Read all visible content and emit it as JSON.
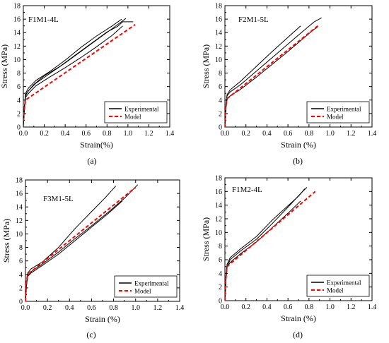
{
  "figure": {
    "panels": [
      "(a)",
      "(b)",
      "(c)",
      "(d)"
    ]
  },
  "chart_data": [
    {
      "type": "line",
      "panel_label": "(a)",
      "annotation": "F1M1-4L",
      "xlabel": "Strain(%)",
      "ylabel": "Stress (MPa)",
      "xlim": [
        0,
        1.4
      ],
      "ylim": [
        0,
        18
      ],
      "xticks": [
        "0.0",
        "0.2",
        "0.4",
        "0.6",
        "0.8",
        "1.0",
        "1.2",
        "1.4"
      ],
      "yticks": [
        "0",
        "2",
        "4",
        "6",
        "8",
        "10",
        "12",
        "14",
        "16",
        "18"
      ],
      "legend": {
        "position": "bottom-right",
        "entries": [
          "Experimental",
          "Model"
        ]
      },
      "grid": false,
      "series": [
        {
          "name": "Experimental",
          "color": "#000000",
          "style": "solid",
          "width": 1,
          "x": [
            0,
            0.01,
            0.02,
            0.04,
            0.1,
            0.2,
            0.35,
            0.5,
            0.65,
            0.8,
            0.9,
            0.95,
            1.05
          ],
          "y": [
            0,
            2.5,
            4.6,
            5.2,
            6.3,
            7.6,
            9.0,
            10.7,
            12.4,
            14.1,
            14.9,
            15.6,
            15.6
          ]
        },
        {
          "name": "Experimental",
          "color": "#000000",
          "style": "solid",
          "width": 1,
          "x": [
            0,
            0.01,
            0.02,
            0.05,
            0.12,
            0.25,
            0.4,
            0.55,
            0.7,
            0.85,
            0.94
          ],
          "y": [
            0,
            3.0,
            5.0,
            5.8,
            6.9,
            8.2,
            9.9,
            11.8,
            13.5,
            15.0,
            16.0
          ]
        },
        {
          "name": "Experimental",
          "color": "#000000",
          "style": "solid",
          "width": 1,
          "x": [
            0,
            0.01,
            0.02,
            0.05,
            0.12,
            0.25,
            0.4,
            0.55,
            0.7,
            0.85,
            0.98
          ],
          "y": [
            0,
            2.8,
            4.8,
            5.4,
            6.5,
            7.9,
            9.5,
            11.2,
            12.9,
            14.6,
            16.1
          ]
        },
        {
          "name": "Experimental",
          "color": "#000000",
          "style": "solid",
          "width": 1,
          "x": [
            0,
            0.01,
            0.02,
            0.05,
            0.12,
            0.25,
            0.4,
            0.55,
            0.7,
            0.85,
            0.95
          ],
          "y": [
            0,
            2.6,
            4.4,
            5.0,
            6.1,
            7.4,
            8.8,
            10.3,
            11.9,
            13.6,
            15.0
          ]
        },
        {
          "name": "Model",
          "color": "#ff0000",
          "style": "dashed",
          "width": 2,
          "x": [
            0,
            0.005,
            0.02,
            1.07
          ],
          "y": [
            0,
            2.0,
            4.0,
            15.2
          ]
        }
      ]
    },
    {
      "type": "line",
      "panel_label": "(b)",
      "annotation": "F2M1-5L",
      "xlabel": "Strain (%)",
      "ylabel": "Stress (MPa)",
      "xlim": [
        0,
        1.4
      ],
      "ylim": [
        0,
        18
      ],
      "xticks": [
        "0.0",
        "0.2",
        "0.4",
        "0.6",
        "0.8",
        "1.0",
        "1.2",
        "1.4"
      ],
      "yticks": [
        "0",
        "2",
        "4",
        "6",
        "8",
        "10",
        "12",
        "14",
        "16",
        "18"
      ],
      "legend": {
        "position": "bottom-right",
        "entries": [
          "Experimental",
          "Model"
        ]
      },
      "grid": false,
      "series": [
        {
          "name": "Experimental",
          "color": "#000000",
          "style": "solid",
          "width": 1,
          "x": [
            0,
            0.01,
            0.02,
            0.05,
            0.15,
            0.3,
            0.45,
            0.6,
            0.75,
            0.85,
            0.92
          ],
          "y": [
            0,
            3.0,
            4.6,
            5.2,
            6.3,
            8.3,
            10.3,
            12.3,
            14.3,
            15.6,
            16.2
          ]
        },
        {
          "name": "Experimental",
          "color": "#000000",
          "style": "solid",
          "width": 1,
          "x": [
            0,
            0.01,
            0.02,
            0.05,
            0.15,
            0.3,
            0.45,
            0.6,
            0.72
          ],
          "y": [
            0,
            3.2,
            4.8,
            5.5,
            6.8,
            9.0,
            11.2,
            13.3,
            15.0
          ]
        },
        {
          "name": "Experimental",
          "color": "#000000",
          "style": "solid",
          "width": 1,
          "x": [
            0,
            0.01,
            0.02,
            0.05,
            0.15,
            0.3,
            0.45,
            0.6,
            0.75,
            0.85,
            0.88
          ],
          "y": [
            0,
            2.8,
            4.2,
            4.6,
            5.6,
            7.4,
            9.3,
            11.2,
            13.2,
            14.5,
            14.8
          ]
        },
        {
          "name": "Model",
          "color": "#ff0000",
          "style": "dashed",
          "width": 2,
          "x": [
            0,
            0.005,
            0.02,
            0.9
          ],
          "y": [
            0,
            2.5,
            4.2,
            15.2
          ]
        }
      ]
    },
    {
      "type": "line",
      "panel_label": "(c)",
      "annotation": "F3M1-5L",
      "xlabel": "Strain (%)",
      "ylabel": "Stress (MPa)",
      "xlim": [
        0,
        1.4
      ],
      "ylim": [
        0,
        18
      ],
      "xticks": [
        "0.0",
        "0.2",
        "0.4",
        "0.6",
        "0.8",
        "1.0",
        "1.2",
        "1.4"
      ],
      "yticks": [
        "0",
        "2",
        "4",
        "6",
        "8",
        "10",
        "12",
        "14",
        "16",
        "18"
      ],
      "legend": {
        "position": "bottom-right",
        "entries": [
          "Experimental",
          "Model"
        ]
      },
      "grid": false,
      "series": [
        {
          "name": "Experimental",
          "color": "#000000",
          "style": "solid",
          "width": 1,
          "x": [
            0,
            0.01,
            0.02,
            0.05,
            0.15,
            0.3,
            0.45,
            0.6,
            0.72,
            0.82
          ],
          "y": [
            0,
            2.8,
            4.2,
            4.8,
            5.8,
            8.0,
            10.8,
            13.3,
            15.3,
            17.1
          ]
        },
        {
          "name": "Experimental",
          "color": "#000000",
          "style": "solid",
          "width": 1,
          "x": [
            0,
            0.01,
            0.02,
            0.05,
            0.15,
            0.3,
            0.45,
            0.6,
            0.75,
            0.9,
            1.02
          ],
          "y": [
            0,
            2.6,
            3.9,
            4.4,
            5.5,
            7.3,
            9.3,
            11.2,
            13.2,
            15.3,
            17.3
          ]
        },
        {
          "name": "Experimental",
          "color": "#000000",
          "style": "solid",
          "width": 1,
          "x": [
            0,
            0.01,
            0.02,
            0.05,
            0.15,
            0.3,
            0.45,
            0.6,
            0.75,
            0.88
          ],
          "y": [
            0,
            2.4,
            3.7,
            4.2,
            5.3,
            7.0,
            9.0,
            11.0,
            13.0,
            14.9
          ]
        },
        {
          "name": "Model",
          "color": "#ff0000",
          "style": "dashed",
          "width": 2,
          "x": [
            0,
            0.005,
            0.02,
            1.0
          ],
          "y": [
            0,
            2.5,
            4.0,
            16.9
          ]
        }
      ]
    },
    {
      "type": "line",
      "panel_label": "(d)",
      "annotation": "F1M2-4L",
      "xlabel": "Strain (%)",
      "ylabel": "Stress (MPa)",
      "xlim": [
        0,
        1.4
      ],
      "ylim": [
        0,
        18
      ],
      "xticks": [
        "0.0",
        "0.2",
        "0.4",
        "0.6",
        "0.8",
        "1.0",
        "1.2",
        "1.4"
      ],
      "yticks": [
        "0",
        "2",
        "4",
        "6",
        "8",
        "10",
        "12",
        "14",
        "16",
        "18"
      ],
      "legend": {
        "position": "bottom-right",
        "entries": [
          "Experimental",
          "Model"
        ]
      },
      "grid": false,
      "series": [
        {
          "name": "Experimental",
          "color": "#000000",
          "style": "solid",
          "width": 1,
          "x": [
            0,
            0.01,
            0.02,
            0.05,
            0.15,
            0.3,
            0.45,
            0.6,
            0.72,
            0.78
          ],
          "y": [
            0,
            3.4,
            5.0,
            6.0,
            7.3,
            9.0,
            11.3,
            13.7,
            15.7,
            16.6
          ]
        },
        {
          "name": "Experimental",
          "color": "#000000",
          "style": "solid",
          "width": 1,
          "x": [
            0,
            0.01,
            0.02,
            0.05,
            0.15,
            0.3,
            0.45,
            0.6,
            0.7,
            0.76
          ],
          "y": [
            0,
            3.2,
            5.3,
            6.3,
            7.6,
            9.4,
            11.8,
            13.9,
            15.3,
            16.4
          ]
        },
        {
          "name": "Experimental",
          "color": "#000000",
          "style": "solid",
          "width": 1,
          "x": [
            0,
            0.01,
            0.02,
            0.05,
            0.15,
            0.3,
            0.45,
            0.6,
            0.72
          ],
          "y": [
            0,
            3.0,
            4.9,
            5.6,
            6.9,
            8.6,
            10.7,
            12.8,
            14.6
          ]
        },
        {
          "name": "Model",
          "color": "#ff0000",
          "style": "dashed",
          "width": 2,
          "x": [
            0,
            0.005,
            0.02,
            0.86
          ],
          "y": [
            0,
            2.5,
            5.0,
            16.0
          ]
        }
      ]
    }
  ]
}
